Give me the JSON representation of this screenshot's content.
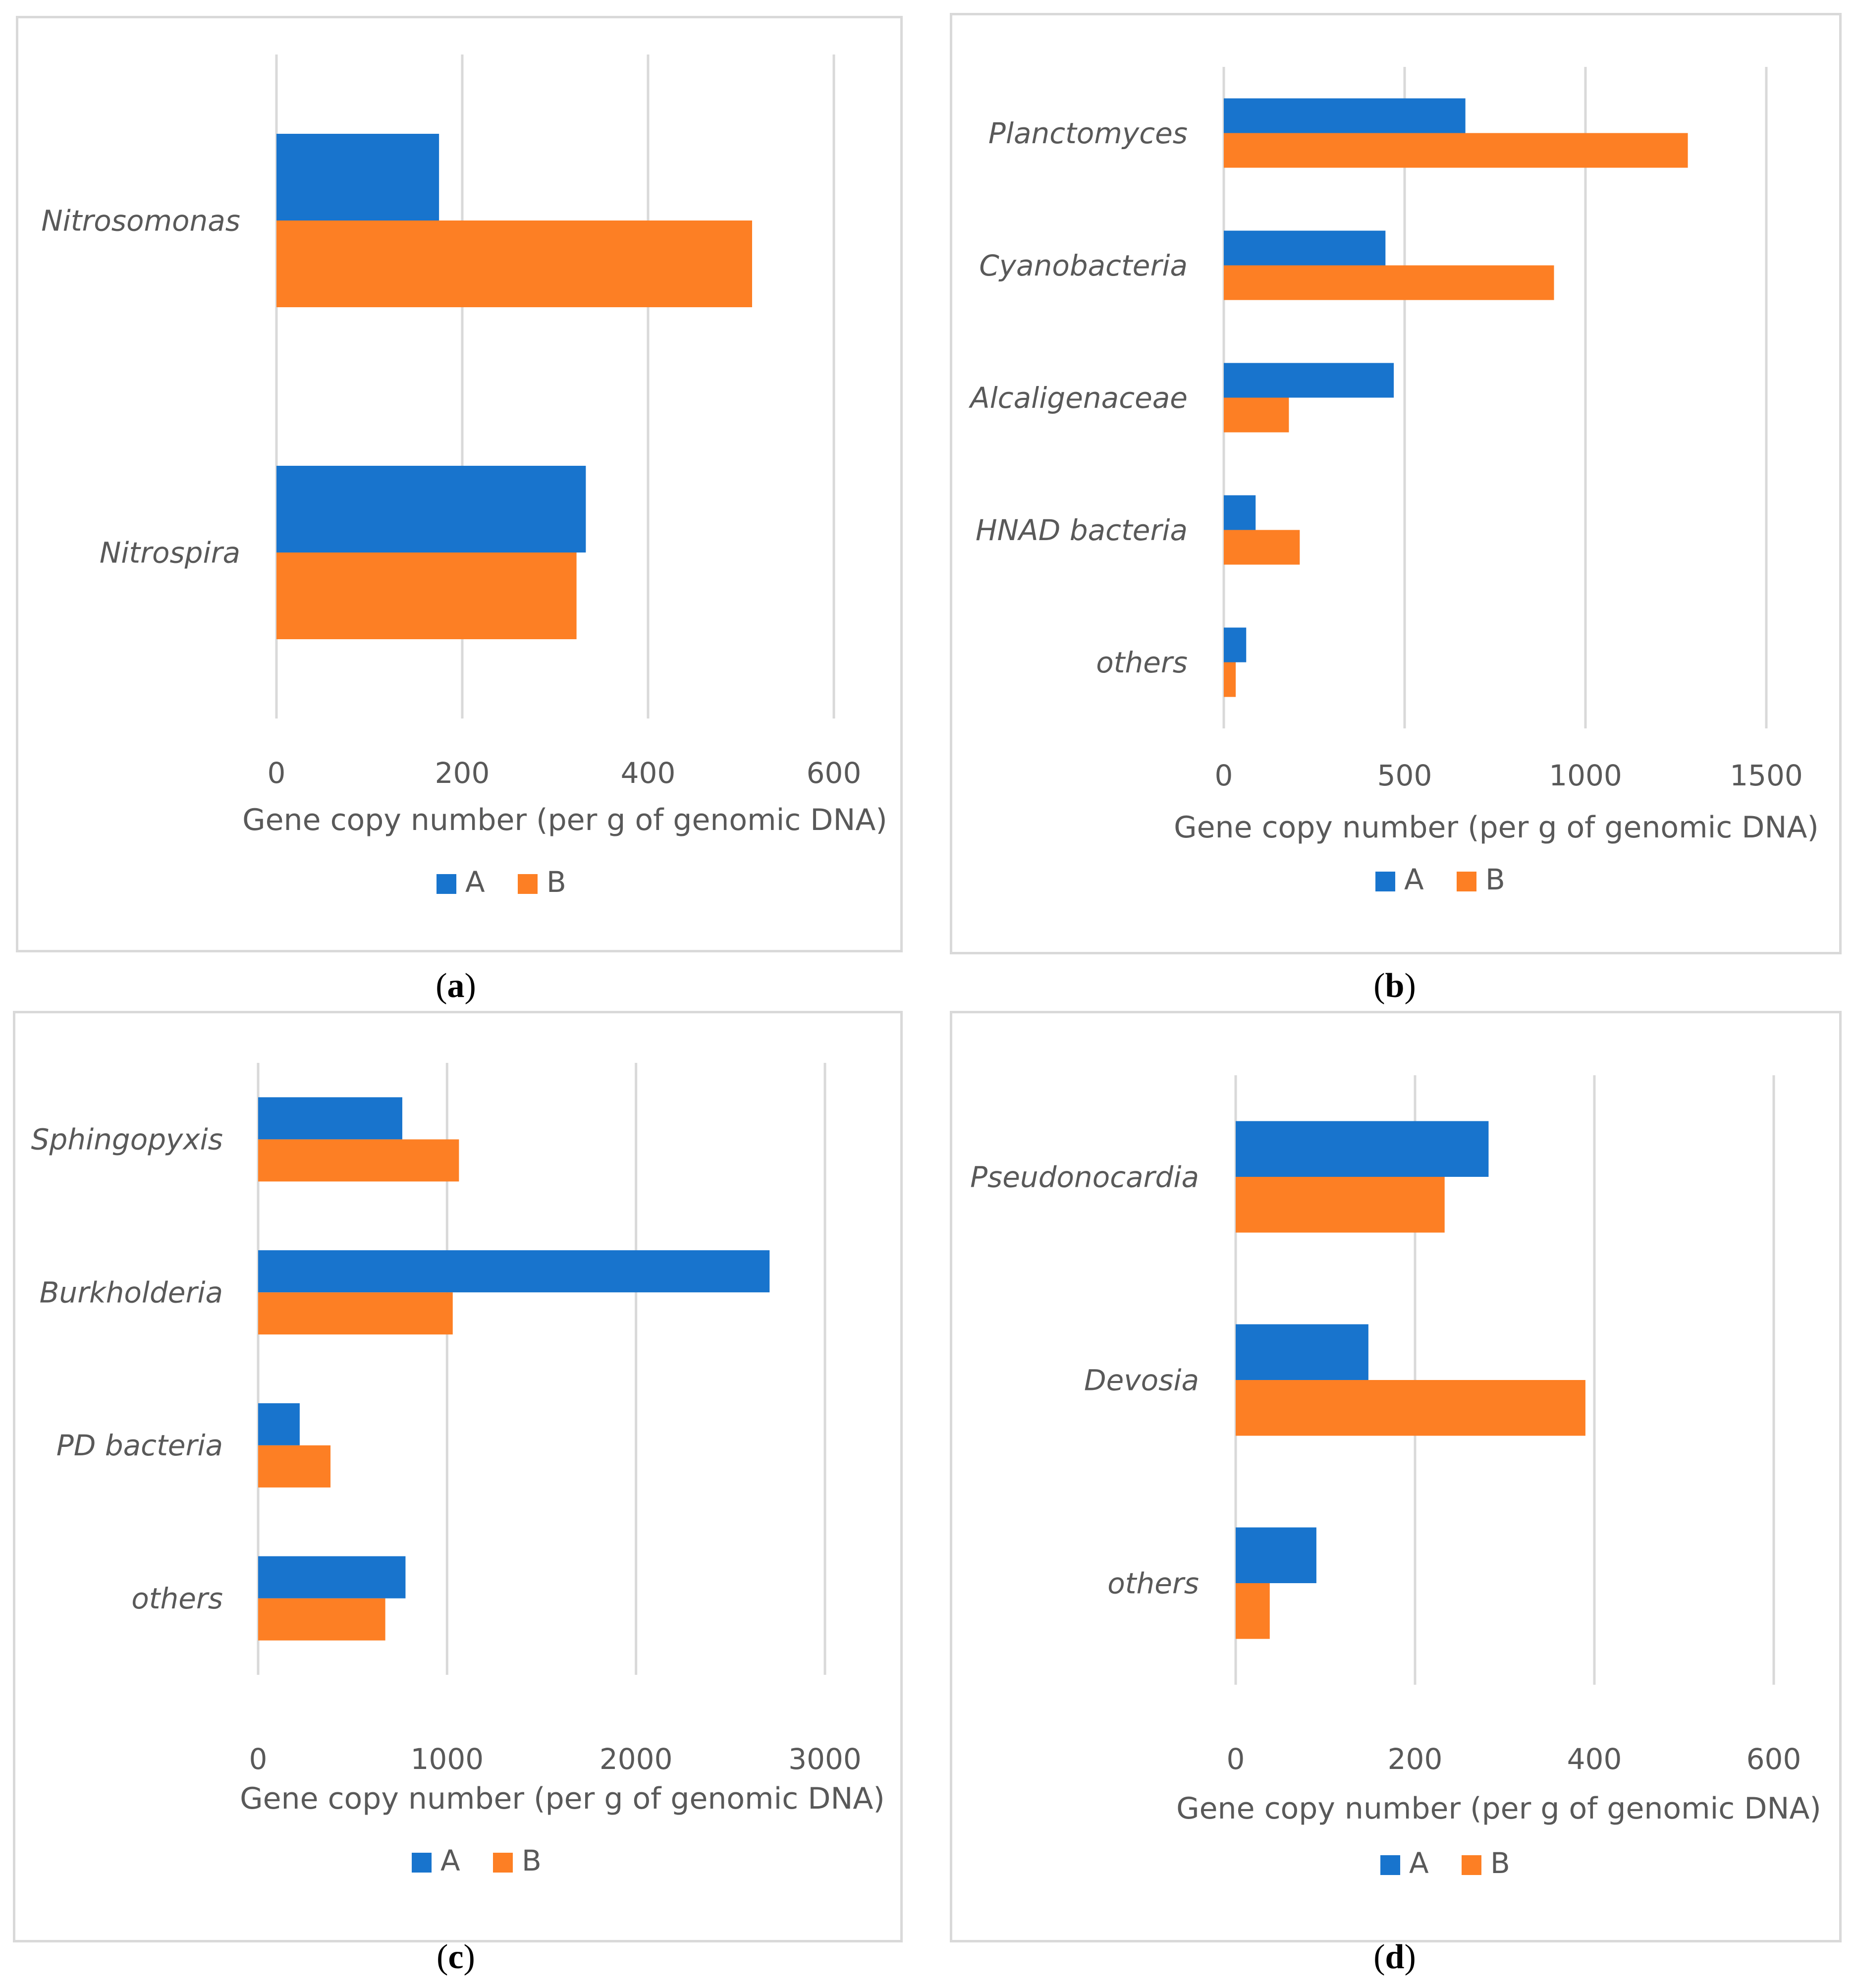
{
  "colors": {
    "A": "#1874cd",
    "B": "#fd7f24",
    "grid": "#d9d9d9",
    "text": "#595959"
  },
  "chart_data": [
    {
      "id": "a",
      "type": "bar",
      "orientation": "horizontal",
      "caption_letter": "a",
      "categories": [
        "Nitrosomonas",
        "Nitrospira"
      ],
      "series": [
        {
          "name": "A",
          "values": [
            175,
            333
          ]
        },
        {
          "name": "B",
          "values": [
            512,
            323
          ]
        }
      ],
      "xlim": [
        0,
        600
      ],
      "xticks": [
        "0",
        "200",
        "400",
        "600"
      ],
      "xlabel": "Gene copy number (per g of genomic DNA)",
      "legend": [
        "A",
        "B"
      ]
    },
    {
      "id": "b",
      "type": "bar",
      "orientation": "horizontal",
      "caption_letter": "b",
      "categories": [
        "Planctomyces",
        "Cyanobacteria",
        "Alcaligenaceae",
        "HNAD bacteria",
        "others"
      ],
      "series": [
        {
          "name": "A",
          "values": [
            668,
            447,
            470,
            88,
            62
          ]
        },
        {
          "name": "B",
          "values": [
            1283,
            913,
            180,
            210,
            33
          ]
        }
      ],
      "xlim": [
        0,
        1500
      ],
      "xticks": [
        "0",
        "500",
        "1000",
        "1500"
      ],
      "xlabel": "Gene copy number (per g of genomic DNA)",
      "legend": [
        "A",
        "B"
      ]
    },
    {
      "id": "c",
      "type": "bar",
      "orientation": "horizontal",
      "caption_letter": "c",
      "categories": [
        "Sphingopyxis",
        "Burkholderia",
        "PD bacteria",
        "others"
      ],
      "series": [
        {
          "name": "A",
          "values": [
            763,
            2707,
            220,
            780
          ]
        },
        {
          "name": "B",
          "values": [
            1063,
            1030,
            383,
            673
          ]
        }
      ],
      "xlim": [
        0,
        3000
      ],
      "xticks": [
        "0",
        "1000",
        "2000",
        "3000"
      ],
      "xlabel": "Gene copy number (per g of genomic DNA)",
      "legend": [
        "A",
        "B"
      ]
    },
    {
      "id": "d",
      "type": "bar",
      "orientation": "horizontal",
      "caption_letter": "d",
      "categories": [
        "Pseudonocardia",
        "Devosia",
        "others"
      ],
      "series": [
        {
          "name": "A",
          "values": [
            282,
            148,
            90
          ]
        },
        {
          "name": "B",
          "values": [
            233,
            390,
            38
          ]
        }
      ],
      "xlim": [
        0,
        600
      ],
      "xticks": [
        "0",
        "200",
        "400",
        "600"
      ],
      "xlabel": "Gene copy number (per g of genomic DNA)",
      "legend": [
        "A",
        "B"
      ]
    }
  ]
}
